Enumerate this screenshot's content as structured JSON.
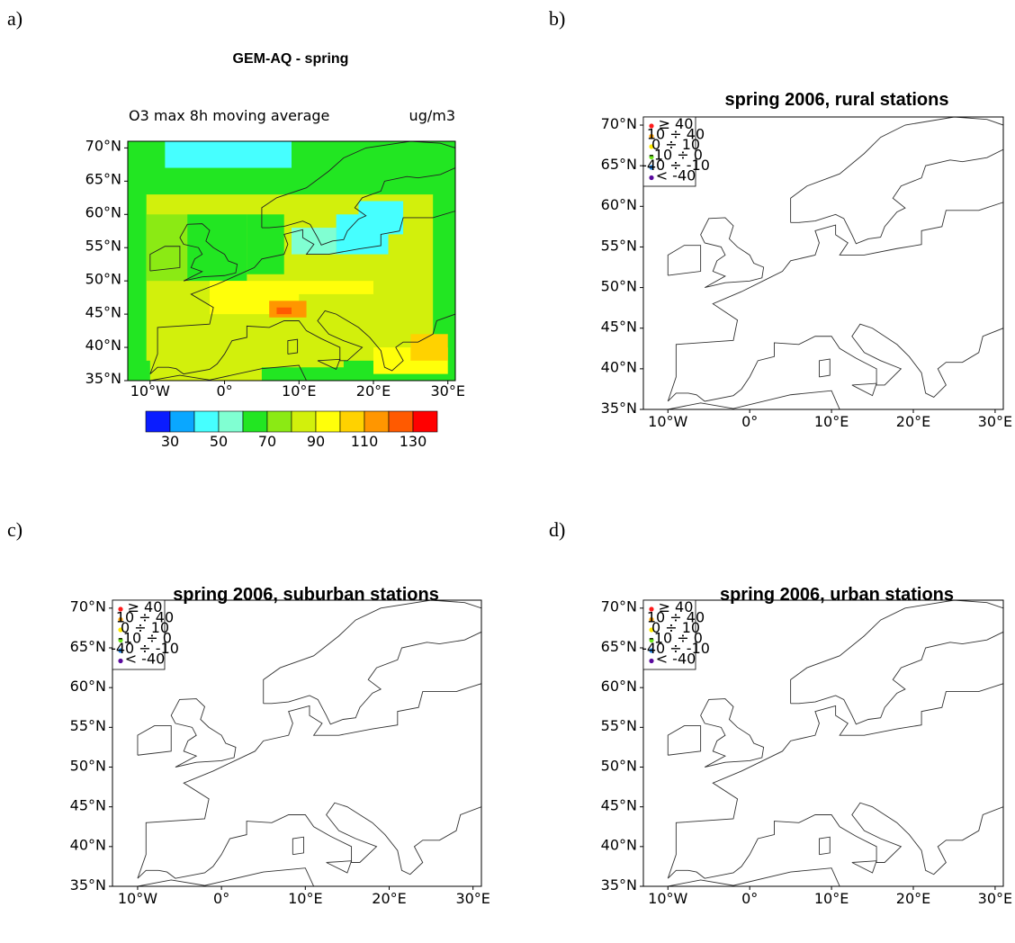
{
  "panels": {
    "a": {
      "letter": "a)",
      "title": "GEM-AQ - spring",
      "variable": "O3 max 8h moving average",
      "unit": "ug/m3",
      "colorbar_labels": [
        "30",
        "50",
        "70",
        "90",
        "110",
        "130"
      ],
      "colors": [
        "#0a1cff",
        "#0aa7ff",
        "#46ffff",
        "#80ffd2",
        "#22e622",
        "#8bea14",
        "#d2f00c",
        "#ffff0a",
        "#ffd200",
        "#ff9600",
        "#ff5a00",
        "#ff0000"
      ]
    },
    "b": {
      "letter": "b)",
      "title": "spring 2006, rural stations"
    },
    "c": {
      "letter": "c)",
      "title": "spring 2006, suburban stations"
    },
    "d": {
      "letter": "d)",
      "title": "spring 2006, urban stations"
    }
  },
  "axes": {
    "lat_labels": [
      "70°N",
      "65°N",
      "60°N",
      "55°N",
      "50°N",
      "45°N",
      "40°N",
      "35°N"
    ],
    "lon_labels": [
      "10°W",
      "0°",
      "10°E",
      "20°E",
      "30°E"
    ]
  },
  "legend": {
    "entries": [
      {
        "label": "≥ 40",
        "color": "#ff1a1a"
      },
      {
        "label": "10 ÷ 40",
        "color": "#ff9f00"
      },
      {
        "label": "0 ÷ 10",
        "color": "#ffea00"
      },
      {
        "label": "-10 ÷ 0",
        "color": "#6ee61c"
      },
      {
        "label": "-40 ÷ -10",
        "color": "#1e7fe0"
      },
      {
        "label": "< -40",
        "color": "#5a0a9e"
      }
    ]
  }
}
